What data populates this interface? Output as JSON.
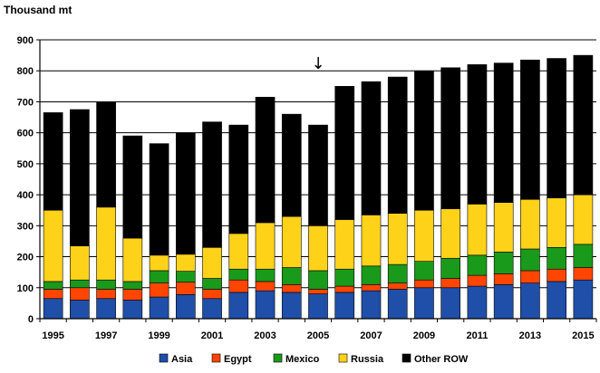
{
  "chart_data": {
    "type": "bar",
    "stacked": true,
    "ylabel": "Thousand mt",
    "ylim": [
      0,
      900
    ],
    "yticks": [
      "0",
      "100",
      "200",
      "300",
      "400",
      "500",
      "600",
      "700",
      "800",
      "900"
    ],
    "grid": true,
    "legend_position": "bottom",
    "categories": [
      "1995",
      "1996",
      "1997",
      "1998",
      "1999",
      "2000",
      "2001",
      "2002",
      "2003",
      "2004",
      "2005",
      "2006",
      "2007",
      "2008",
      "2009",
      "2010",
      "2011",
      "2012",
      "2013",
      "2014",
      "2015"
    ],
    "x_tick_labels": [
      "1995",
      "",
      "1997",
      "",
      "1999",
      "",
      "2001",
      "",
      "2003",
      "",
      "2005",
      "",
      "2007",
      "",
      "2009",
      "",
      "2011",
      "",
      "2013",
      "",
      "2015"
    ],
    "annotation": "↓",
    "annotation_category": "2005",
    "series": [
      {
        "name": "Asia",
        "color": "#1f4fa8",
        "values": [
          65,
          60,
          65,
          60,
          70,
          78,
          65,
          85,
          90,
          85,
          80,
          85,
          90,
          95,
          100,
          100,
          105,
          110,
          115,
          120,
          125
        ]
      },
      {
        "name": "Egypt",
        "color": "#ff4500",
        "values": [
          30,
          40,
          30,
          35,
          45,
          40,
          30,
          40,
          30,
          25,
          15,
          20,
          20,
          20,
          25,
          30,
          35,
          35,
          40,
          40,
          40
        ]
      },
      {
        "name": "Mexico",
        "color": "#1a9a1a",
        "values": [
          25,
          25,
          30,
          25,
          40,
          35,
          35,
          35,
          40,
          55,
          60,
          55,
          60,
          60,
          60,
          65,
          65,
          70,
          70,
          70,
          75
        ]
      },
      {
        "name": "Russia",
        "color": "#ffd21a",
        "values": [
          230,
          110,
          235,
          140,
          50,
          55,
          100,
          115,
          150,
          165,
          145,
          160,
          165,
          165,
          165,
          160,
          165,
          160,
          160,
          160,
          160
        ]
      },
      {
        "name": "Other ROW",
        "color": "#000000",
        "values": [
          315,
          440,
          340,
          330,
          360,
          392,
          405,
          350,
          405,
          330,
          325,
          430,
          430,
          440,
          450,
          455,
          450,
          450,
          450,
          450,
          450
        ]
      }
    ]
  }
}
